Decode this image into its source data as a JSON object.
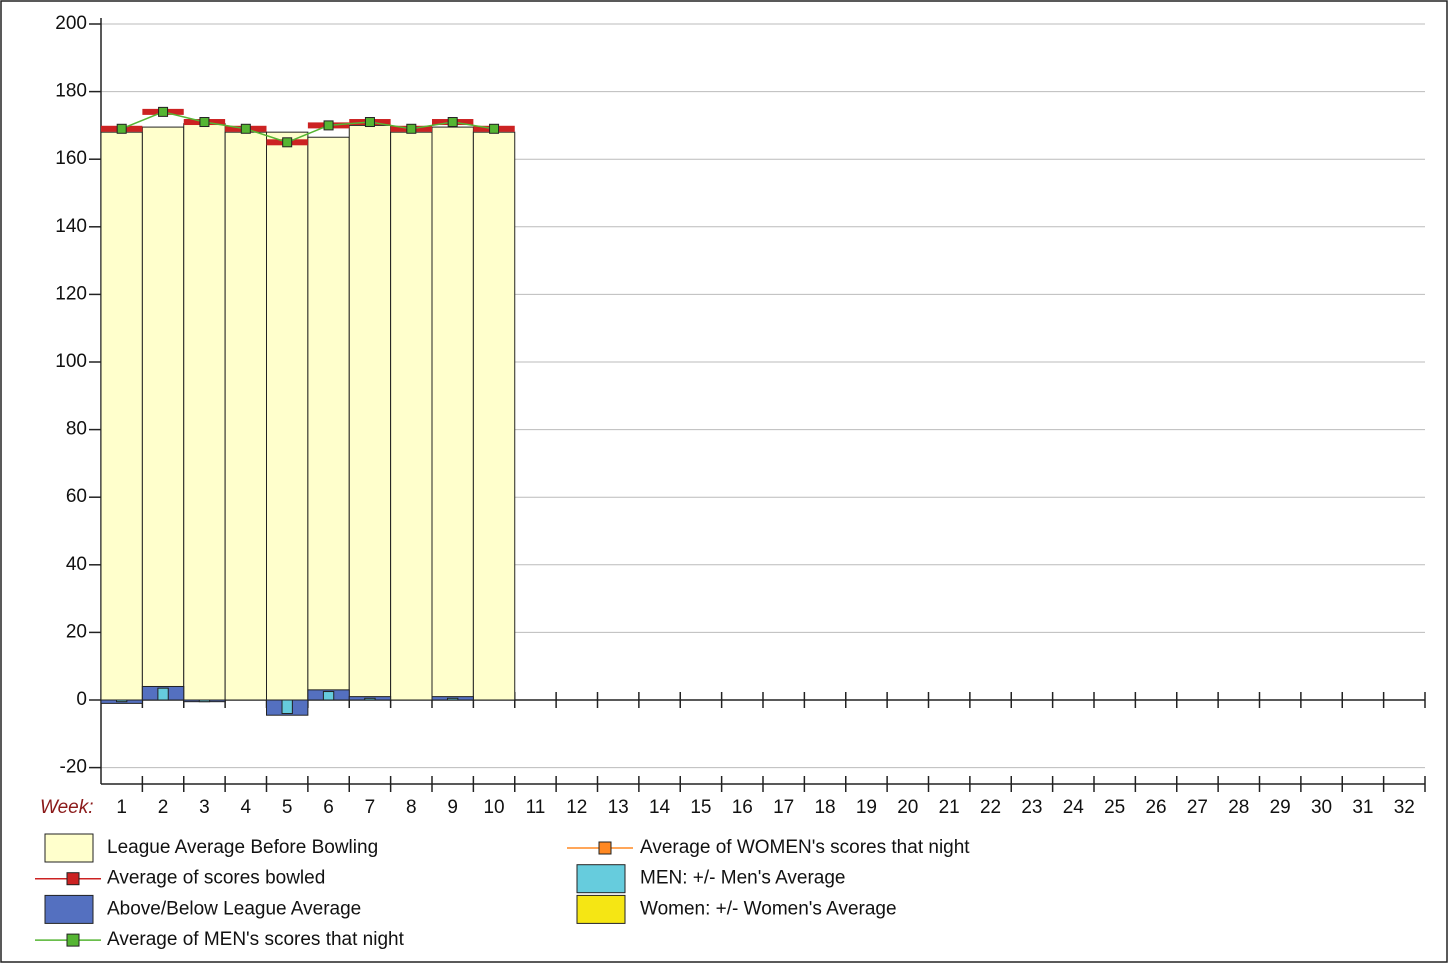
{
  "chart_data": {
    "type": "bar",
    "x_label": "Week:",
    "categories": [
      "1",
      "2",
      "3",
      "4",
      "5",
      "6",
      "7",
      "8",
      "9",
      "10",
      "11",
      "12",
      "13",
      "14",
      "15",
      "16",
      "17",
      "18",
      "19",
      "20",
      "21",
      "22",
      "23",
      "24",
      "25",
      "26",
      "27",
      "28",
      "29",
      "30",
      "31",
      "32"
    ],
    "ylim": [
      -25,
      200
    ],
    "yticks": [
      -20,
      0,
      20,
      40,
      60,
      80,
      100,
      120,
      140,
      160,
      180,
      200
    ],
    "grid": true,
    "series": [
      {
        "name": "League Average Before Bowling",
        "kind": "bar",
        "color": "#ffffcc",
        "values": [
          168,
          169.5,
          170.5,
          168,
          168,
          166.5,
          170,
          168,
          169.5,
          168,
          null,
          null,
          null,
          null,
          null,
          null,
          null,
          null,
          null,
          null,
          null,
          null,
          null,
          null,
          null,
          null,
          null,
          null,
          null,
          null,
          null,
          null
        ]
      },
      {
        "name": "Average of scores bowled",
        "kind": "marker",
        "color": "#cc2222",
        "values": [
          169,
          174,
          171,
          169,
          165,
          170,
          171,
          169,
          171,
          169,
          null,
          null,
          null,
          null,
          null,
          null,
          null,
          null,
          null,
          null,
          null,
          null,
          null,
          null,
          null,
          null,
          null,
          null,
          null,
          null,
          null,
          null
        ]
      },
      {
        "name": "Above/Below League Average",
        "kind": "bar",
        "color": "#5470c0",
        "values": [
          -1,
          4,
          -0.5,
          0,
          -4.5,
          3,
          1,
          0,
          1,
          0,
          null,
          null,
          null,
          null,
          null,
          null,
          null,
          null,
          null,
          null,
          null,
          null,
          null,
          null,
          null,
          null,
          null,
          null,
          null,
          null,
          null,
          null
        ]
      },
      {
        "name": "Average of MEN's scores that night",
        "kind": "line",
        "color": "#55b533",
        "values": [
          169,
          174,
          171,
          169,
          165,
          170,
          171,
          169,
          171,
          169,
          null,
          null,
          null,
          null,
          null,
          null,
          null,
          null,
          null,
          null,
          null,
          null,
          null,
          null,
          null,
          null,
          null,
          null,
          null,
          null,
          null,
          null
        ]
      },
      {
        "name": "Average of WOMEN's scores that night",
        "kind": "line",
        "color": "#ff8822",
        "values": [
          null,
          null,
          null,
          null,
          null,
          null,
          null,
          null,
          null,
          null,
          null,
          null,
          null,
          null,
          null,
          null,
          null,
          null,
          null,
          null,
          null,
          null,
          null,
          null,
          null,
          null,
          null,
          null,
          null,
          null,
          null,
          null
        ]
      },
      {
        "name": "MEN: +/- Men's Average",
        "kind": "narrow_bar",
        "color": "#66ccdd",
        "values": [
          -0.5,
          3.5,
          -0.5,
          0,
          -4,
          2.5,
          0.5,
          0,
          0.5,
          0,
          null,
          null,
          null,
          null,
          null,
          null,
          null,
          null,
          null,
          null,
          null,
          null,
          null,
          null,
          null,
          null,
          null,
          null,
          null,
          null,
          null,
          null
        ]
      },
      {
        "name": "Women: +/- Women's Average",
        "kind": "narrow_bar",
        "color": "#f5e614",
        "values": [
          null,
          null,
          null,
          null,
          null,
          null,
          null,
          null,
          null,
          null,
          null,
          null,
          null,
          null,
          null,
          null,
          null,
          null,
          null,
          null,
          null,
          null,
          null,
          null,
          null,
          null,
          null,
          null,
          null,
          null,
          null,
          null
        ]
      }
    ]
  }
}
